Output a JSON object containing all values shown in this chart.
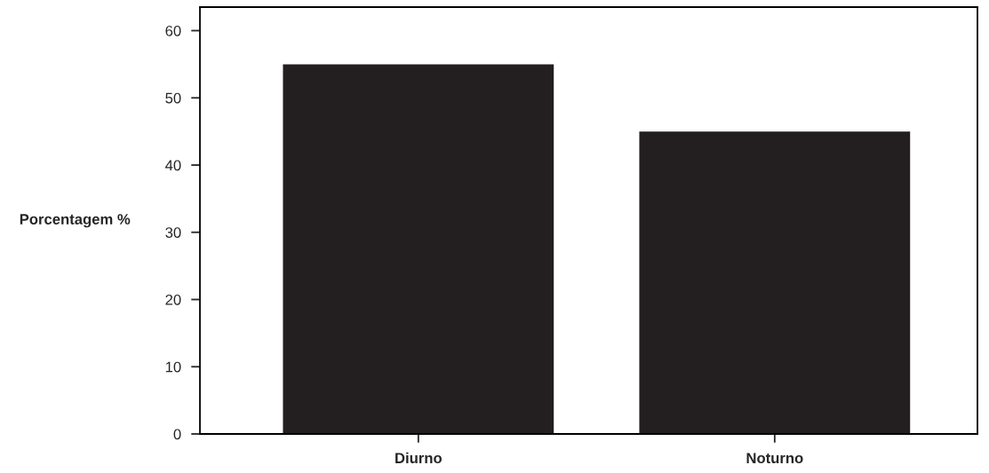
{
  "chart_data": {
    "type": "bar",
    "ylabel": "Porcentagem %",
    "categories": [
      "Diurno",
      "Noturno"
    ],
    "values": [
      55,
      45
    ],
    "color": "#231f20",
    "ylim": [
      0,
      63.5
    ],
    "yticks": [
      0,
      10,
      20,
      30,
      40,
      50,
      60
    ],
    "grid": false
  }
}
